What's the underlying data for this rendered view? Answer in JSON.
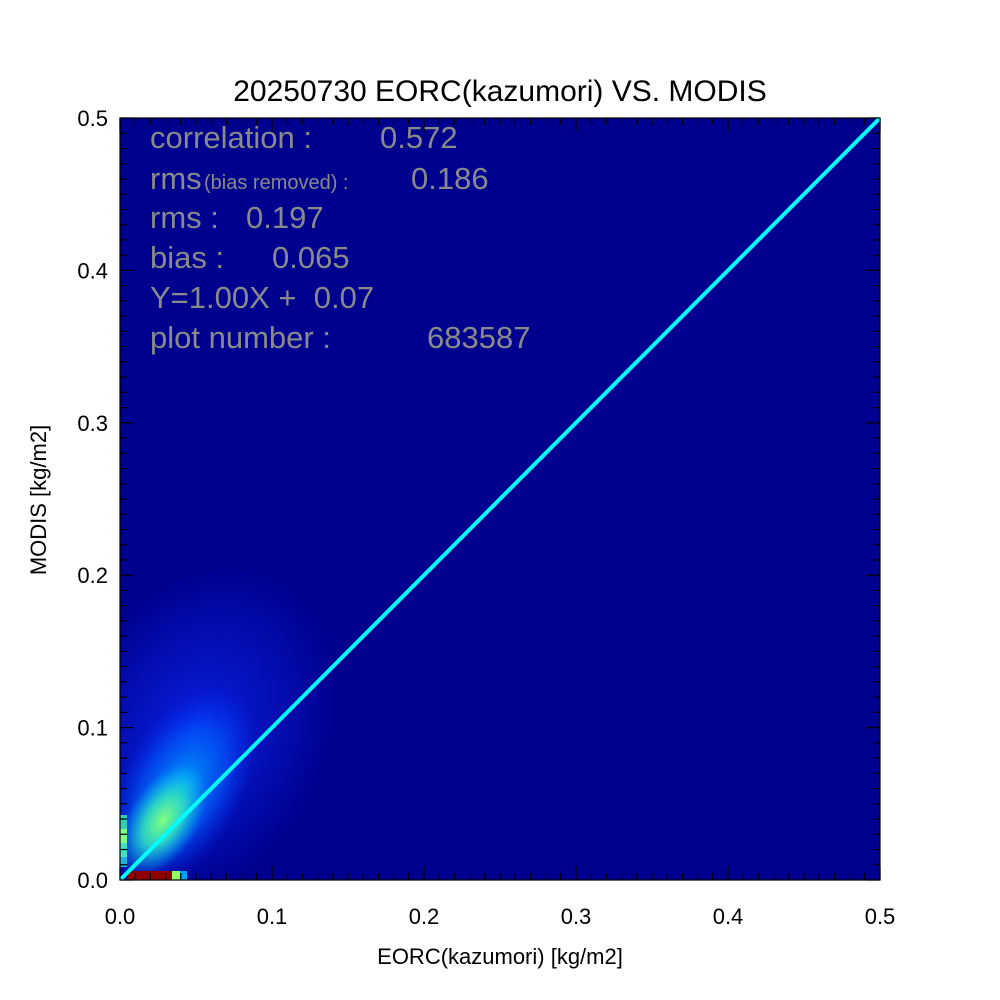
{
  "chart_data": {
    "type": "heatmap",
    "title": "20250730 EORC(kazumori) VS. MODIS",
    "xlabel": "EORC(kazumori) [kg/m2]",
    "ylabel": "MODIS [kg/m2]",
    "xlim": [
      0.0,
      0.5
    ],
    "ylim": [
      0.0,
      0.5
    ],
    "x_ticks": [
      "0.0",
      "0.1",
      "0.2",
      "0.3",
      "0.4",
      "0.5"
    ],
    "y_ticks": [
      "0.0",
      "0.1",
      "0.2",
      "0.3",
      "0.4",
      "0.5"
    ],
    "background_color": "#00008f",
    "line_color": "#00ffff",
    "reference_line": {
      "x": [
        0.0,
        0.5
      ],
      "y": [
        0.0,
        0.5
      ]
    },
    "density_core": {
      "x": 0.03,
      "y": 0.035
    },
    "stats": {
      "correlation": {
        "label": "correlation :",
        "value": "0.572"
      },
      "rms_bias_removed": {
        "label": "rms",
        "sublabel": "(bias removed) :",
        "value": "0.186"
      },
      "rms": {
        "label": "rms :",
        "value": "0.197"
      },
      "bias": {
        "label": "bias :",
        "value": "0.065"
      },
      "regression": {
        "text": "Y=1.00X +  0.07"
      },
      "plot_number": {
        "label": "plot number :",
        "value": "683587"
      }
    }
  }
}
